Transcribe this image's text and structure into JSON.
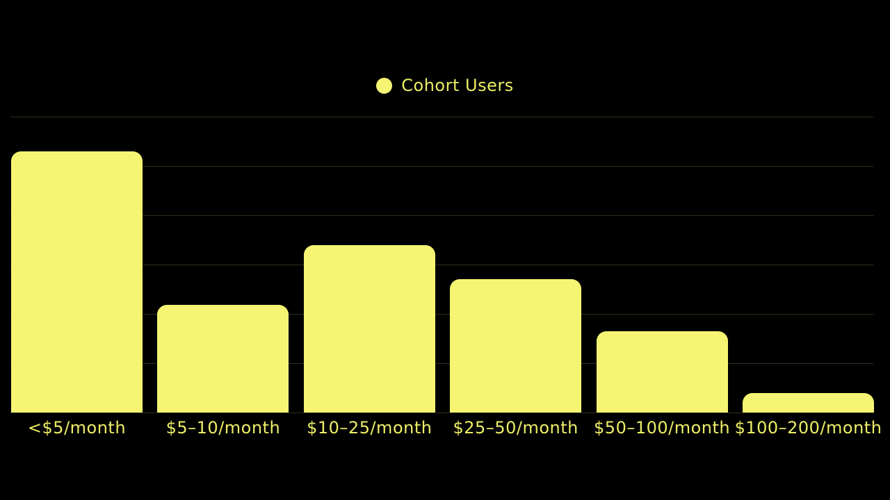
{
  "page": {
    "background": "#000000"
  },
  "legend": {
    "items": [
      {
        "label": "Cohort Users",
        "color": "#F5F573"
      }
    ]
  },
  "chart_data": {
    "type": "bar",
    "title": "",
    "xlabel": "",
    "ylabel": "",
    "categories": [
      "<$5/month",
      "$5–10/month",
      "$10–25/month",
      "$25–50/month",
      "$50–100/month",
      "$100–200/month"
    ],
    "series": [
      {
        "name": "Cohort Users",
        "values": [
          530,
          218,
          340,
          270,
          165,
          40
        ]
      }
    ],
    "ylim": [
      0,
      600
    ],
    "gridline_step": 100,
    "grid": true,
    "y_tick_labels_visible": false,
    "legend_position": "top-center",
    "bar_color": "#F5F573",
    "label_color": "#EDEE66",
    "grid_color": "rgba(240, 240, 150, 0.20)"
  }
}
